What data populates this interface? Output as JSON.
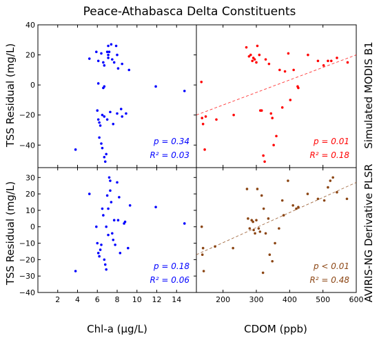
{
  "figure_title": "Peace-Athabasca Delta Constituents",
  "row_labels": [
    "Simulated MODIS B1",
    "AVIRIS-NG Derivative PLSR"
  ],
  "ylabel": "TSS Residual (mg/L)",
  "xlabels": [
    "Chl-a (µg/L)",
    "CDOM (ppb)"
  ],
  "chart_data": [
    {
      "type": "scatter",
      "panel": "top-left",
      "color": "#0000ff",
      "xlim": [
        0,
        16
      ],
      "ylim": [
        -55,
        40
      ],
      "xticks": [
        2,
        4,
        6,
        8,
        10,
        12,
        14
      ],
      "yticks": [
        -40,
        -20,
        0,
        20,
        40
      ],
      "stats": {
        "p": "p = 0.34",
        "r2": "R² = 0.03"
      },
      "points": [
        [
          3.8,
          -43
        ],
        [
          5.2,
          17.5
        ],
        [
          5.9,
          22
        ],
        [
          6.1,
          16
        ],
        [
          6.4,
          21
        ],
        [
          6.6,
          15
        ],
        [
          6.7,
          13
        ],
        [
          7.0,
          22
        ],
        [
          7.1,
          26
        ],
        [
          7.1,
          20
        ],
        [
          7.1,
          18
        ],
        [
          7.2,
          22
        ],
        [
          7.4,
          27
        ],
        [
          7.5,
          17
        ],
        [
          7.7,
          15
        ],
        [
          7.9,
          26
        ],
        [
          8.0,
          20
        ],
        [
          8.1,
          11
        ],
        [
          8.5,
          14
        ],
        [
          9.2,
          10
        ],
        [
          6.1,
          1
        ],
        [
          6.6,
          -2
        ],
        [
          6.7,
          -1
        ],
        [
          6.0,
          -17
        ],
        [
          6.1,
          -23
        ],
        [
          6.2,
          -25
        ],
        [
          6.3,
          -27
        ],
        [
          6.5,
          -20
        ],
        [
          6.7,
          -21
        ],
        [
          7.0,
          -23
        ],
        [
          7.3,
          -18
        ],
        [
          7.6,
          -26
        ],
        [
          8.0,
          -19
        ],
        [
          8.4,
          -16
        ],
        [
          8.5,
          -21
        ],
        [
          8.9,
          -19
        ],
        [
          6.2,
          -35
        ],
        [
          6.4,
          -39
        ],
        [
          6.5,
          -42
        ],
        [
          6.7,
          -48
        ],
        [
          6.8,
          -51
        ],
        [
          6.9,
          -46
        ],
        [
          11.9,
          -1
        ],
        [
          14.8,
          -4
        ]
      ]
    },
    {
      "type": "scatter",
      "panel": "top-right",
      "color": "#ff0000",
      "xlim": [
        120,
        600
      ],
      "ylim": [
        -55,
        40
      ],
      "xticks": [
        200,
        300,
        400,
        500,
        600
      ],
      "yticks": [
        -40,
        -20,
        0,
        20,
        40
      ],
      "trendline": [
        [
          120,
          -20
        ],
        [
          600,
          20
        ]
      ],
      "stats": {
        "p": "p = 0.01",
        "r2": "R² = 0.18"
      },
      "points": [
        [
          135,
          2
        ],
        [
          137,
          -22
        ],
        [
          140,
          -26
        ],
        [
          145,
          -43
        ],
        [
          148,
          -21
        ],
        [
          180,
          -23
        ],
        [
          232,
          -20
        ],
        [
          270,
          25
        ],
        [
          278,
          19
        ],
        [
          283,
          20
        ],
        [
          288,
          16
        ],
        [
          291,
          18
        ],
        [
          295,
          17
        ],
        [
          300,
          15
        ],
        [
          303,
          26
        ],
        [
          309,
          20
        ],
        [
          312,
          -17
        ],
        [
          316,
          -17
        ],
        [
          321,
          -47
        ],
        [
          325,
          -51
        ],
        [
          328,
          17
        ],
        [
          338,
          14
        ],
        [
          344,
          -19
        ],
        [
          348,
          -22
        ],
        [
          352,
          -40
        ],
        [
          360,
          -34
        ],
        [
          370,
          10
        ],
        [
          378,
          -15
        ],
        [
          386,
          9
        ],
        [
          396,
          21
        ],
        [
          402,
          -10
        ],
        [
          412,
          10
        ],
        [
          424,
          -1
        ],
        [
          426,
          -2
        ],
        [
          455,
          20
        ],
        [
          485,
          16
        ],
        [
          502,
          13
        ],
        [
          515,
          16
        ],
        [
          525,
          16
        ],
        [
          542,
          18
        ],
        [
          574,
          15
        ]
      ]
    },
    {
      "type": "scatter",
      "panel": "bottom-left",
      "color": "#0000ff",
      "xlim": [
        0,
        16
      ],
      "ylim": [
        -40,
        36
      ],
      "xticks": [
        2,
        4,
        6,
        8,
        10,
        12,
        14
      ],
      "yticks": [
        -40,
        -30,
        -20,
        -10,
        0,
        10,
        20,
        30
      ],
      "stats": {
        "p": "p = 0.18",
        "r2": "R² = 0.06"
      },
      "points": [
        [
          3.8,
          -27
        ],
        [
          5.2,
          20
        ],
        [
          5.9,
          0
        ],
        [
          6.0,
          -10
        ],
        [
          6.1,
          -16
        ],
        [
          6.2,
          -18
        ],
        [
          6.3,
          -14
        ],
        [
          6.4,
          -11
        ],
        [
          6.5,
          11
        ],
        [
          6.6,
          7
        ],
        [
          6.7,
          -20
        ],
        [
          6.8,
          -23
        ],
        [
          6.9,
          -26
        ],
        [
          6.9,
          0
        ],
        [
          7.0,
          19
        ],
        [
          7.1,
          11
        ],
        [
          7.1,
          -5
        ],
        [
          7.2,
          30
        ],
        [
          7.3,
          22
        ],
        [
          7.3,
          28
        ],
        [
          7.4,
          15
        ],
        [
          7.5,
          -4
        ],
        [
          7.6,
          -8
        ],
        [
          7.7,
          4
        ],
        [
          7.8,
          -11
        ],
        [
          8.0,
          27
        ],
        [
          8.1,
          4
        ],
        [
          8.2,
          18
        ],
        [
          8.3,
          -16
        ],
        [
          8.7,
          2
        ],
        [
          8.8,
          3
        ],
        [
          9.1,
          -13
        ],
        [
          9.3,
          13
        ],
        [
          11.9,
          12
        ],
        [
          14.8,
          2
        ]
      ]
    },
    {
      "type": "scatter",
      "panel": "bottom-right",
      "color": "#8b4513",
      "xlim": [
        120,
        600
      ],
      "ylim": [
        -40,
        36
      ],
      "xticks": [
        200,
        300,
        400,
        500,
        600
      ],
      "yticks": [
        -40,
        -30,
        -20,
        -10,
        0,
        10,
        20,
        30
      ],
      "trendline": [
        [
          120,
          -17
        ],
        [
          600,
          27
        ]
      ],
      "stats": {
        "p": "p < 0.01",
        "r2": "R² = 0.48"
      },
      "points": [
        [
          136,
          0
        ],
        [
          138,
          -17
        ],
        [
          140,
          -13
        ],
        [
          142,
          -27
        ],
        [
          176,
          -12
        ],
        [
          230,
          -13
        ],
        [
          272,
          23
        ],
        [
          275,
          5
        ],
        [
          280,
          -1
        ],
        [
          286,
          4
        ],
        [
          290,
          3
        ],
        [
          292,
          -2
        ],
        [
          296,
          -4
        ],
        [
          300,
          4
        ],
        [
          303,
          23
        ],
        [
          307,
          -1
        ],
        [
          311,
          -3
        ],
        [
          316,
          19
        ],
        [
          320,
          -28
        ],
        [
          322,
          11
        ],
        [
          328,
          -4
        ],
        [
          336,
          5
        ],
        [
          340,
          -17
        ],
        [
          348,
          -21
        ],
        [
          356,
          -10
        ],
        [
          368,
          -1
        ],
        [
          378,
          16
        ],
        [
          382,
          7
        ],
        [
          395,
          28
        ],
        [
          410,
          13
        ],
        [
          420,
          11
        ],
        [
          426,
          12
        ],
        [
          454,
          20
        ],
        [
          485,
          17
        ],
        [
          504,
          16
        ],
        [
          515,
          24
        ],
        [
          522,
          28
        ],
        [
          530,
          30
        ],
        [
          542,
          21
        ],
        [
          572,
          17
        ]
      ]
    }
  ]
}
